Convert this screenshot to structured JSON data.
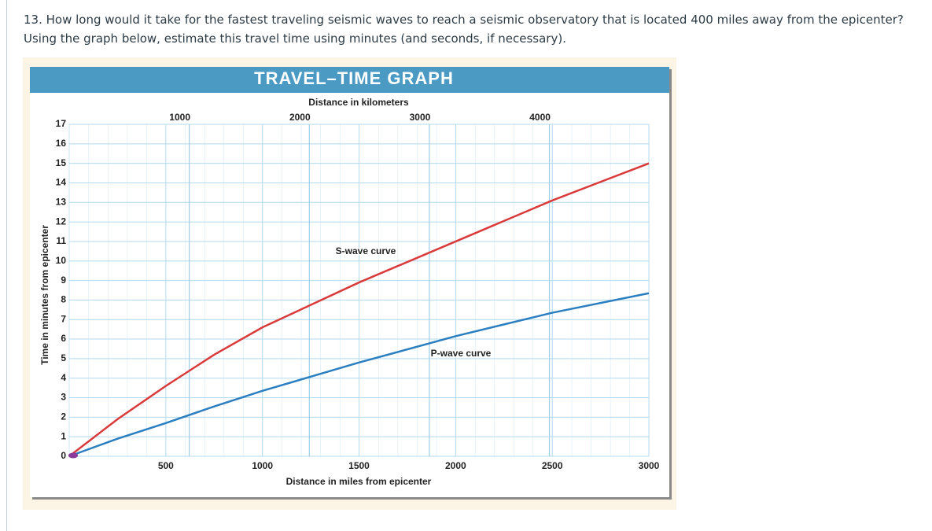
{
  "question": {
    "text": "13. How long would it take for the fastest traveling seismic waves to reach a seismic observatory that is located 400 miles away from the epicenter? Using the graph below, estimate this travel time using minutes (and seconds, if necessary)."
  },
  "chart_data": {
    "type": "line",
    "title": "TRAVEL–TIME GRAPH",
    "x_label": "Distance in miles from epicenter",
    "x2_label": "Distance in kilometers",
    "y_label": "Time in minutes from epicenter",
    "x": [
      0,
      250,
      500,
      750,
      1000,
      1500,
      2000,
      2500,
      3000
    ],
    "series": [
      {
        "name": "S-wave curve",
        "color": "#d93a3a",
        "values": [
          0,
          1.9,
          3.6,
          5.2,
          6.6,
          8.9,
          11.0,
          13.1,
          15.0
        ]
      },
      {
        "name": "P-wave curve",
        "color": "#2b7fc0",
        "values": [
          0,
          0.9,
          1.7,
          2.55,
          3.35,
          4.8,
          6.15,
          7.35,
          8.35
        ]
      }
    ],
    "xlim": [
      0,
      3000
    ],
    "xticks": [
      500,
      1000,
      1500,
      2000,
      2500,
      3000
    ],
    "x2lim": [
      0,
      4828
    ],
    "x2ticks": [
      1000,
      2000,
      3000,
      4000
    ],
    "ylim": [
      0,
      17
    ],
    "yticks": [
      0,
      1,
      2,
      3,
      4,
      5,
      6,
      7,
      8,
      9,
      10,
      11,
      12,
      13,
      14,
      15,
      16,
      17
    ],
    "grid": true
  }
}
